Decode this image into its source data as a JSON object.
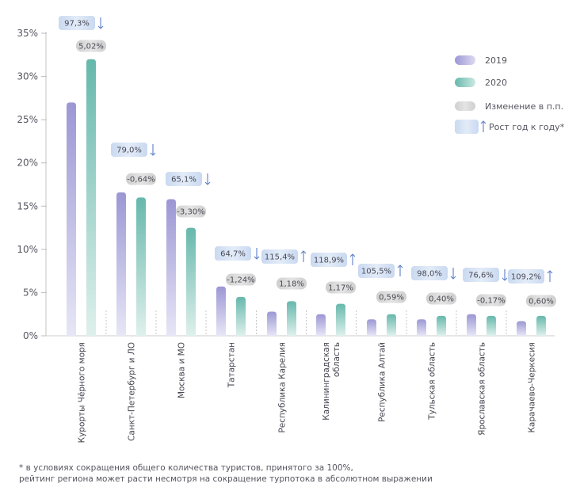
{
  "chart_data": {
    "type": "bar",
    "categories": [
      "Курорты Чёрного моря",
      "Санкт-Петербург и ЛО",
      "Москва и МО",
      "Татарстан",
      "Республика Карелия",
      "Калининградская область",
      "Республика Алтай",
      "Тульская область",
      "Ярославская область",
      "Карачаево-Черкесия"
    ],
    "category_lines": [
      [
        "Курорты Чёрного моря"
      ],
      [
        "Санкт-Петербург и ЛО"
      ],
      [
        "Москва и МО"
      ],
      [
        "Татарстан"
      ],
      [
        "Республика Карелия"
      ],
      [
        "Калининградская",
        "область"
      ],
      [
        "Республика Алтай"
      ],
      [
        "Тульская область"
      ],
      [
        "Ярославская область"
      ],
      [
        "Карачаево-Черкесия"
      ]
    ],
    "series": [
      {
        "name": "2019",
        "values": [
          27.0,
          16.6,
          15.8,
          5.7,
          2.8,
          2.5,
          1.9,
          1.9,
          2.5,
          1.7
        ]
      },
      {
        "name": "2020",
        "values": [
          32.0,
          16.0,
          12.5,
          4.5,
          4.0,
          3.7,
          2.5,
          2.3,
          2.3,
          2.3
        ]
      }
    ],
    "change_pp": [
      "5,02%",
      "-0,64%",
      "-3,30%",
      "-1,24%",
      "1,18%",
      "1,17%",
      "0,59%",
      "0,40%",
      "-0,17%",
      "0,60%"
    ],
    "yoy_growth": [
      "97,3%",
      "79,0%",
      "65,1%",
      "64,7%",
      "115,4%",
      "118,9%",
      "105,5%",
      "98,0%",
      "76,6%",
      "109,2%"
    ],
    "yoy_direction": [
      "down",
      "down",
      "down",
      "down",
      "up",
      "up",
      "up",
      "down",
      "down",
      "up"
    ],
    "y_ticks": [
      "0%",
      "5%",
      "10%",
      "15%",
      "20%",
      "25%",
      "30%",
      "35%"
    ],
    "ylim": [
      0,
      35
    ],
    "colors": {
      "2019": "#a49fd8",
      "2020": "#6fbfb3",
      "pill_gray": "#d9d9d9",
      "pill_blue": "#d5e2f4",
      "arrow": "#5b7fc9"
    },
    "legend": {
      "placement": "top-right",
      "items": [
        {
          "label": "2019",
          "kind": "2019"
        },
        {
          "label": "2020",
          "kind": "2020"
        },
        {
          "label": "Изменение в п.п.",
          "kind": "gray"
        },
        {
          "label": "Рост год к году*",
          "kind": "blue"
        }
      ]
    },
    "grid": false
  },
  "footnote": {
    "line1": "* в условиях сокращения общего количества туристов, принятого за 100%,",
    "line2": "рейтинг региона может расти несмотря на сокращение турпотока в абсолютном выражении"
  }
}
